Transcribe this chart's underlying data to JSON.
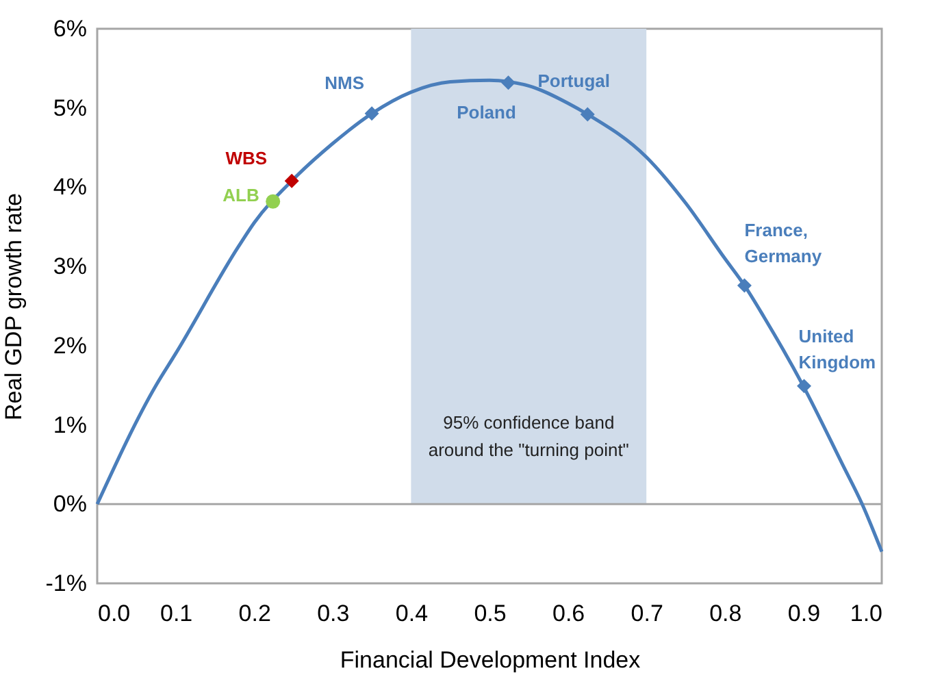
{
  "chart_data": {
    "type": "line",
    "xlabel": "Financial Development Index",
    "ylabel": "Real GDP growth rate",
    "series": [
      {
        "color": "#4a7ebb",
        "x": [
          0,
          0.075,
          0.1,
          0.18,
          0.2,
          0.25,
          0.3,
          0.35,
          0.4,
          0.45,
          0.5,
          0.525,
          0.55,
          0.6,
          0.625,
          0.7,
          0.75,
          0.8,
          0.825,
          0.85,
          0.9,
          0.95,
          0.975,
          1.0
        ],
        "values": [
          0,
          1.5,
          1.9,
          3.25,
          3.55,
          4.1,
          4.55,
          4.93,
          5.2,
          5.33,
          5.35,
          5.33,
          5.28,
          5.06,
          4.92,
          4.38,
          3.8,
          3.1,
          2.76,
          2.36,
          1.49,
          0.5,
          0,
          -0.6
        ]
      },
      {
        "type": "scatter",
        "name": "NMS",
        "color": "#4a7ebb",
        "marker": "diamond",
        "x": [
          0.35
        ],
        "values": [
          4.93
        ]
      },
      {
        "type": "scatter",
        "name": "Poland",
        "color": "#4a7ebb",
        "marker": "diamond",
        "x": [
          0.524
        ],
        "values": [
          5.32
        ]
      },
      {
        "type": "scatter",
        "name": "Portugal",
        "color": "#4a7ebb",
        "marker": "diamond",
        "x": [
          0.625
        ],
        "values": [
          4.92
        ]
      },
      {
        "type": "scatter",
        "name": "France,\nGermany",
        "color": "#4a7ebb",
        "marker": "diamond",
        "x": [
          0.825
        ],
        "values": [
          2.76
        ]
      },
      {
        "type": "scatter",
        "name": "United\nKingdom",
        "color": "#4a7ebb",
        "marker": "diamond",
        "x": [
          0.901
        ],
        "values": [
          1.49
        ]
      },
      {
        "type": "scatter",
        "name": "WBS",
        "color": "#c00000",
        "marker": "diamond",
        "x": [
          0.248
        ],
        "values": [
          4.08
        ]
      },
      {
        "type": "scatter",
        "name": "ALB",
        "color": "#92d050",
        "marker": "circle",
        "x": [
          0.224
        ],
        "values": [
          3.82
        ]
      }
    ],
    "bands": [
      {
        "axis": "x",
        "from": 0.4,
        "to": 0.7,
        "label": "95% confidence band\naround the \"turning point\"",
        "color": "#d0dcea"
      }
    ],
    "ref_lines": [
      {
        "axis": "y",
        "value": 0,
        "color": "#a6a6a6"
      }
    ],
    "xlim": [
      0,
      1
    ],
    "xticks": [
      {
        "value": 0,
        "label": "0.0"
      },
      {
        "value": 0.1,
        "label": "0.1"
      },
      {
        "value": 0.2,
        "label": "0.2"
      },
      {
        "value": 0.3,
        "label": "0.3"
      },
      {
        "value": 0.4,
        "label": "0.4"
      },
      {
        "value": 0.5,
        "label": "0.5"
      },
      {
        "value": 0.6,
        "label": "0.6"
      },
      {
        "value": 0.7,
        "label": "0.7"
      },
      {
        "value": 0.8,
        "label": "0.8"
      },
      {
        "value": 0.9,
        "label": "0.9"
      },
      {
        "value": 1,
        "label": "1.0"
      }
    ],
    "ylim": [
      -1,
      6
    ],
    "yticks": [
      {
        "value": -1,
        "label": "-1%"
      },
      {
        "value": 0,
        "label": "0%"
      },
      {
        "value": 1,
        "label": "1%"
      },
      {
        "value": 2,
        "label": "2%"
      },
      {
        "value": 3,
        "label": "3%"
      },
      {
        "value": 4,
        "label": "4%"
      },
      {
        "value": 5,
        "label": "5%"
      },
      {
        "value": 6,
        "label": "6%"
      }
    ],
    "grid": false
  }
}
